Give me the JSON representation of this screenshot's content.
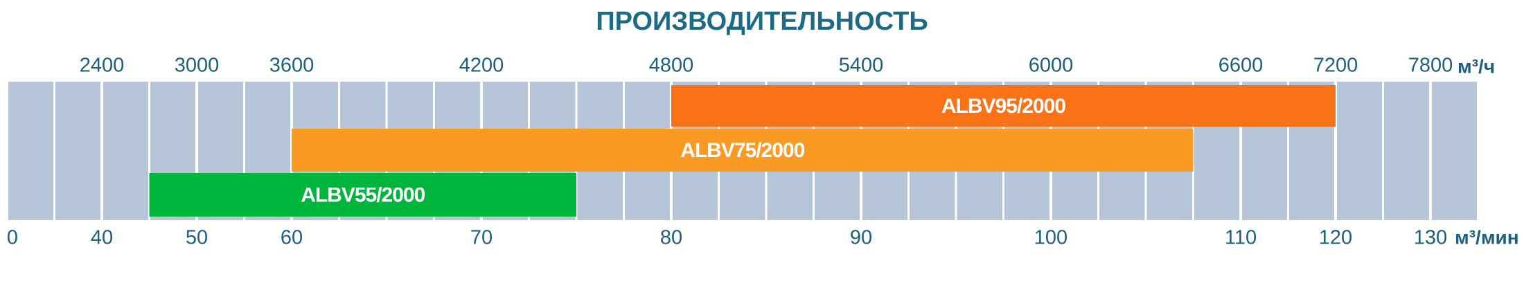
{
  "chart_data": {
    "type": "range-bar",
    "title": "ПРОИЗВОДИТЕЛЬНОСТЬ",
    "x_unit": "м³/мин",
    "x2_unit": "м³/ч",
    "xlim": [
      0,
      130
    ],
    "xticks": [
      0,
      40,
      50,
      60,
      70,
      80,
      90,
      100,
      110,
      120,
      130
    ],
    "x2ticks": [
      2400,
      3000,
      3600,
      4200,
      4800,
      5400,
      6000,
      6600,
      7200,
      7800
    ],
    "series": [
      {
        "name": "ALBV95/2000",
        "color": "#f97316",
        "start": 80,
        "end": 120
      },
      {
        "name": "ALBV75/2000",
        "color": "#fb9a22",
        "start": 60,
        "end": 107.5
      },
      {
        "name": "ALBV55/2000",
        "color": "#00b53c",
        "start": 45,
        "end": 75
      }
    ]
  }
}
